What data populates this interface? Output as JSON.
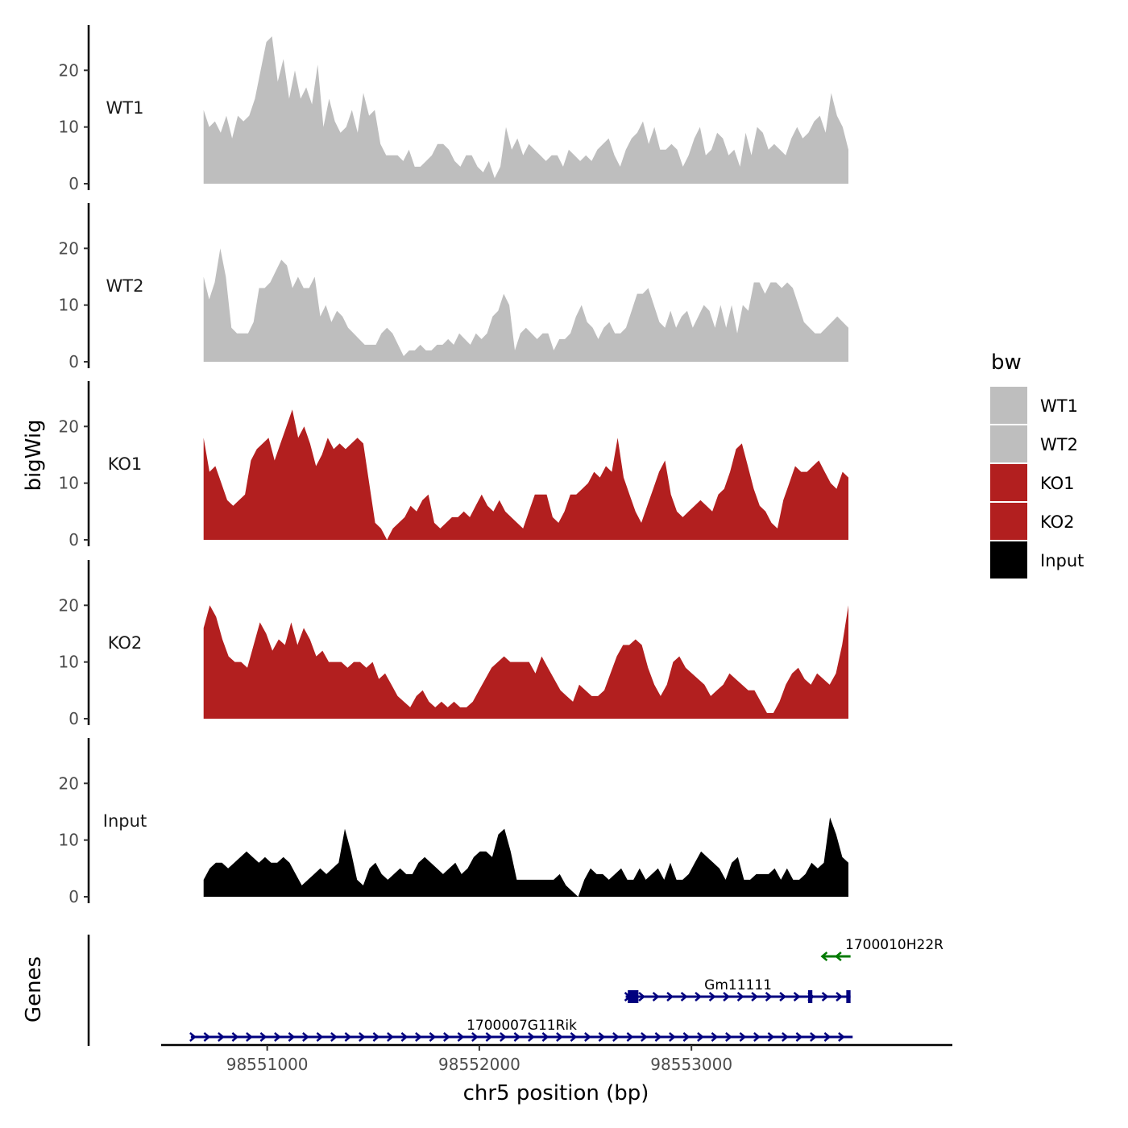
{
  "chart_data": {
    "type": "area",
    "x_unit": "bp",
    "xlim": [
      98550500,
      98554230
    ],
    "x_ticks": [
      98551000,
      98552000,
      98553000
    ],
    "x_tick_labels": [
      "98551000",
      "98552000",
      "98553000"
    ],
    "xlabel": "chr5 position (bp)",
    "ylabel": "bigWig",
    "ylim": [
      0,
      28
    ],
    "y_ticks": [
      0,
      10,
      20
    ],
    "y_tick_labels": [
      "0",
      "10",
      "20"
    ],
    "legend": {
      "title": "bw",
      "position": "right",
      "entries": [
        {
          "label": "WT1",
          "color": "#bebebe"
        },
        {
          "label": "WT2",
          "color": "#bebebe"
        },
        {
          "label": "KO1",
          "color": "#b21f1f"
        },
        {
          "label": "KO2",
          "color": "#b21f1f"
        },
        {
          "label": "Input",
          "color": "#000000"
        }
      ]
    },
    "series": [
      {
        "name": "WT1",
        "color": "#bebebe",
        "x_start": 98550700,
        "x_end": 98553740,
        "x_step": 40,
        "values": [
          13,
          10,
          11,
          9,
          12,
          8,
          12,
          11,
          12,
          15,
          20,
          25,
          26,
          18,
          22,
          15,
          20,
          15,
          17,
          14,
          21,
          10,
          15,
          11,
          9,
          10,
          13,
          9,
          16,
          12,
          13,
          7,
          5,
          5,
          5,
          4,
          6,
          3,
          3,
          4,
          5,
          7,
          7,
          6,
          4,
          3,
          5,
          5,
          3,
          2,
          4,
          1,
          3,
          10,
          6,
          8,
          5,
          7,
          6,
          5,
          4,
          5,
          5,
          3,
          6,
          5,
          4,
          5,
          4,
          6,
          7,
          8,
          5,
          3,
          6,
          8,
          9,
          11,
          7,
          10,
          6,
          6,
          7,
          6,
          3,
          5,
          8,
          10,
          5,
          6,
          9,
          8,
          5,
          6,
          3,
          9,
          5,
          10,
          9,
          6,
          7,
          6,
          5,
          8,
          10,
          8,
          9,
          11,
          12,
          9,
          16,
          12,
          10,
          6
        ]
      },
      {
        "name": "WT2",
        "color": "#bebebe",
        "x_start": 98550700,
        "x_end": 98553740,
        "x_step": 40,
        "values": [
          15,
          11,
          14,
          20,
          15,
          6,
          5,
          5,
          5,
          7,
          13,
          13,
          14,
          16,
          18,
          17,
          13,
          15,
          13,
          13,
          15,
          8,
          10,
          7,
          9,
          8,
          6,
          5,
          4,
          3,
          3,
          3,
          5,
          6,
          5,
          3,
          1,
          2,
          2,
          3,
          2,
          2,
          3,
          3,
          4,
          3,
          5,
          4,
          3,
          5,
          4,
          5,
          8,
          9,
          12,
          10,
          2,
          5,
          6,
          5,
          4,
          5,
          5,
          2,
          4,
          4,
          5,
          8,
          10,
          7,
          6,
          4,
          6,
          7,
          5,
          5,
          6,
          9,
          12,
          12,
          13,
          10,
          7,
          6,
          9,
          6,
          8,
          9,
          6,
          8,
          10,
          9,
          6,
          10,
          6,
          10,
          5,
          10,
          9,
          14,
          14,
          12,
          14,
          14,
          13,
          14,
          13,
          10,
          7,
          6,
          5,
          5,
          6,
          7,
          8,
          7,
          6
        ]
      },
      {
        "name": "KO1",
        "color": "#b21f1f",
        "x_start": 98550700,
        "x_end": 98553740,
        "x_step": 40,
        "values": [
          18,
          12,
          13,
          10,
          7,
          6,
          7,
          8,
          14,
          16,
          17,
          18,
          14,
          17,
          20,
          23,
          18,
          20,
          17,
          13,
          15,
          18,
          16,
          17,
          16,
          17,
          18,
          17,
          10,
          3,
          2,
          0,
          2,
          3,
          4,
          6,
          5,
          7,
          8,
          3,
          2,
          3,
          4,
          4,
          5,
          4,
          6,
          8,
          6,
          5,
          7,
          5,
          4,
          3,
          2,
          5,
          8,
          8,
          8,
          4,
          3,
          5,
          8,
          8,
          9,
          10,
          12,
          11,
          13,
          12,
          18,
          11,
          8,
          5,
          3,
          6,
          9,
          12,
          14,
          8,
          5,
          4,
          5,
          6,
          7,
          6,
          5,
          8,
          9,
          12,
          16,
          17,
          13,
          9,
          6,
          5,
          3,
          2,
          7,
          10,
          13,
          12,
          12,
          13,
          14,
          12,
          10,
          9,
          12,
          11
        ]
      },
      {
        "name": "KO2",
        "color": "#b21f1f",
        "x_start": 98550700,
        "x_end": 98553740,
        "x_step": 40,
        "values": [
          16,
          20,
          18,
          14,
          11,
          10,
          10,
          9,
          13,
          17,
          15,
          12,
          14,
          13,
          17,
          13,
          16,
          14,
          11,
          12,
          10,
          10,
          10,
          9,
          10,
          10,
          9,
          10,
          7,
          8,
          6,
          4,
          3,
          2,
          4,
          5,
          3,
          2,
          3,
          2,
          3,
          2,
          2,
          3,
          5,
          7,
          9,
          10,
          11,
          10,
          10,
          10,
          10,
          8,
          11,
          9,
          7,
          5,
          4,
          3,
          6,
          5,
          4,
          4,
          5,
          8,
          11,
          13,
          13,
          14,
          13,
          9,
          6,
          4,
          6,
          10,
          11,
          9,
          8,
          7,
          6,
          4,
          5,
          6,
          8,
          7,
          6,
          5,
          5,
          3,
          1,
          1,
          3,
          6,
          8,
          9,
          7,
          6,
          8,
          7,
          6,
          8,
          13,
          20
        ]
      },
      {
        "name": "Input",
        "color": "#000000",
        "x_start": 98550700,
        "x_end": 98553740,
        "x_step": 40,
        "values": [
          3,
          5,
          6,
          6,
          5,
          6,
          7,
          8,
          7,
          6,
          7,
          6,
          6,
          7,
          6,
          4,
          2,
          3,
          4,
          5,
          4,
          5,
          6,
          12,
          8,
          3,
          2,
          5,
          6,
          4,
          3,
          4,
          5,
          4,
          4,
          6,
          7,
          6,
          5,
          4,
          5,
          6,
          4,
          5,
          7,
          8,
          8,
          7,
          11,
          12,
          8,
          3,
          3,
          3,
          3,
          3,
          3,
          3,
          4,
          2,
          1,
          0,
          3,
          5,
          4,
          4,
          3,
          4,
          5,
          3,
          3,
          5,
          3,
          4,
          5,
          3,
          6,
          3,
          3,
          4,
          6,
          8,
          7,
          6,
          5,
          3,
          6,
          7,
          3,
          3,
          4,
          4,
          4,
          5,
          3,
          5,
          3,
          3,
          4,
          6,
          5,
          6,
          14,
          11,
          7,
          6
        ]
      }
    ],
    "genes_track": {
      "ylabel": "Genes",
      "genes": [
        {
          "name": "1700010H22R",
          "strand": "-",
          "start": 98553620,
          "end": 98553750,
          "color": "#007a00",
          "exons": []
        },
        {
          "name": "Gm11111",
          "strand": "+",
          "start": 98552690,
          "end": 98553750,
          "color": "#00007f",
          "exons": [
            [
              98552700,
              98552750
            ],
            [
              98553550,
              98553570
            ],
            [
              98553730,
              98553750
            ]
          ]
        },
        {
          "name": "1700007G11Rik",
          "strand": "+",
          "start": 98550640,
          "end": 98553760,
          "color": "#00007f",
          "exons": []
        }
      ]
    }
  }
}
